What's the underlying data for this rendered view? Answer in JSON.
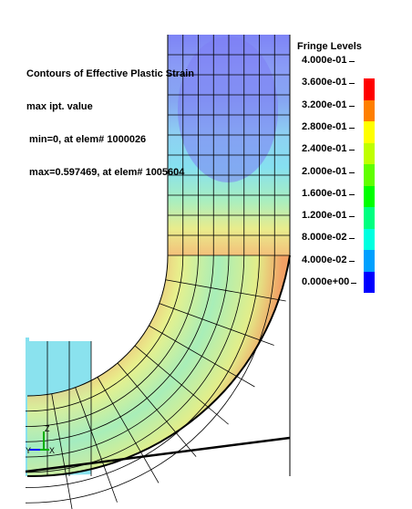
{
  "plot": {
    "info_lines": [
      "Contours of Effective Plastic Strain",
      "max ipt. value",
      " min=0, at elem# 1000026",
      " max=0.597469, at elem# 1005604"
    ]
  },
  "fringe": {
    "title": "Fringe Levels",
    "levels": [
      "4.000e-01",
      "3.600e-01",
      "3.200e-01",
      "2.800e-01",
      "2.400e-01",
      "2.000e-01",
      "1.600e-01",
      "1.200e-01",
      "8.000e-02",
      "4.000e-02",
      "0.000e+00"
    ],
    "colors_top_to_bottom": [
      "#ff0000",
      "#ff7f00",
      "#ffff00",
      "#bfff00",
      "#60ff00",
      "#00ff00",
      "#00ff80",
      "#00ffe0",
      "#00a0ff",
      "#0000ff"
    ]
  },
  "triad": {
    "axes": [
      "Z",
      "X",
      "Y"
    ]
  },
  "contour_colors": {
    "low": "#7e7ef4",
    "mid": "#7ee0ee",
    "high_green": "#b8f2a0",
    "yellow": "#eef08a",
    "orange": "#f5a060",
    "background": "#ffffff",
    "mesh": "#000000"
  }
}
